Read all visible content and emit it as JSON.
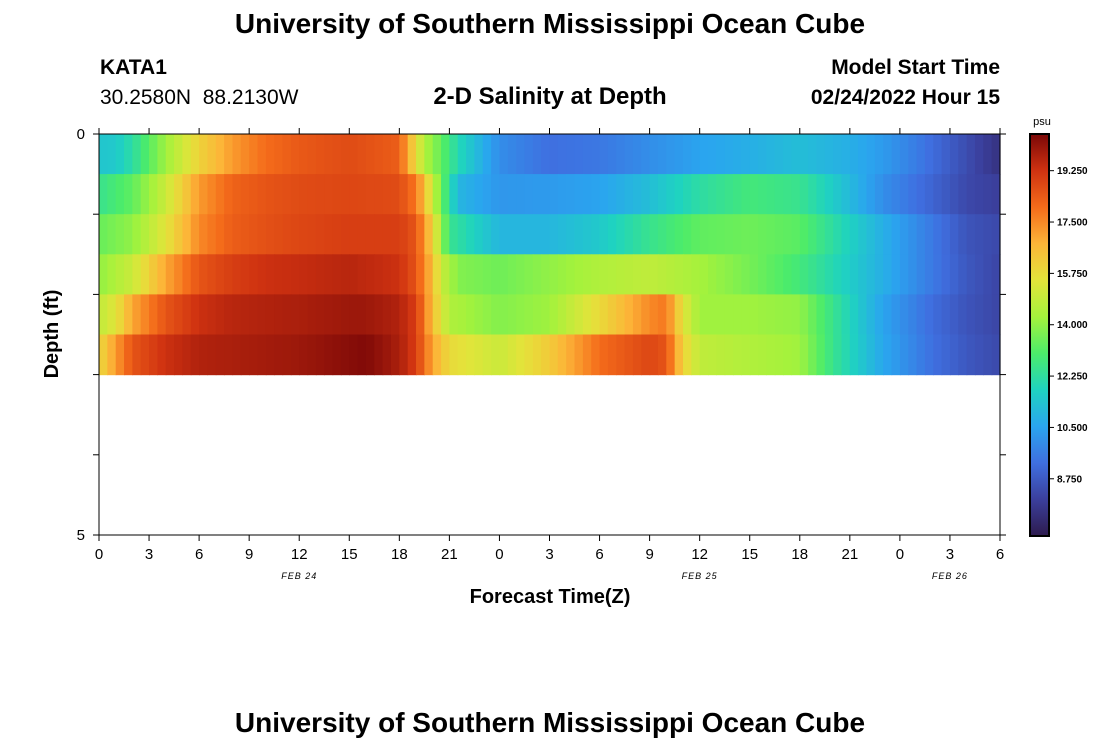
{
  "header": {
    "title": "University of Southern Mississippi Ocean Cube",
    "station_name": "KATA1",
    "station_coords": "30.2580N  88.2130W",
    "subtitle": "2-D Salinity at Depth",
    "model_start_label": "Model Start Time",
    "model_start_value": "02/24/2022 Hour 15"
  },
  "footer": {
    "title": "University of Southern Mississippi Ocean Cube"
  },
  "chart_data": {
    "type": "heatmap",
    "title": "2-D Salinity at Depth",
    "xlabel": "Forecast Time(Z)",
    "ylabel": "Depth (ft)",
    "x_tick_labels": [
      "0",
      "3",
      "6",
      "9",
      "12",
      "15",
      "18",
      "21",
      "0",
      "3",
      "6",
      "9",
      "12",
      "15",
      "18",
      "21",
      "0",
      "3",
      "6"
    ],
    "date_labels": [
      {
        "label": "FEB 24",
        "tick_index": 4
      },
      {
        "label": "FEB 25",
        "tick_index": 12
      },
      {
        "label": "FEB 26",
        "tick_index": 17
      }
    ],
    "y_tick_labels": [
      "0",
      "5"
    ],
    "ylim": [
      0,
      5
    ],
    "colorbar": {
      "unit": "psu",
      "tick_labels": [
        "19.250",
        "17.500",
        "15.750",
        "14.000",
        "12.250",
        "10.500",
        "8.750"
      ],
      "range": [
        6.8,
        20.5
      ],
      "colors": [
        "#2d1b4e",
        "#3b3f9c",
        "#3f6fe0",
        "#2aa5ef",
        "#1fd3c0",
        "#4cec6a",
        "#a5f23c",
        "#e3e43a",
        "#fcb538",
        "#f46b1a",
        "#cf3211",
        "#7a0707"
      ]
    },
    "layers": [
      {
        "depth_ft": 0.25,
        "times": [
          0,
          1,
          2,
          4,
          6,
          8,
          10,
          12,
          15,
          18,
          18.5,
          19.5,
          20.3,
          21.5,
          24,
          27,
          30,
          33,
          36,
          39,
          42,
          45,
          47,
          49,
          51.5,
          53.5,
          54
        ],
        "values": [
          11.4,
          11.5,
          12.2,
          14.2,
          16.0,
          17.2,
          18.0,
          18.4,
          18.7,
          18.3,
          17.0,
          14.5,
          13.6,
          12.0,
          10.0,
          9.3,
          9.5,
          10.0,
          10.5,
          10.8,
          11.2,
          10.8,
          10.3,
          9.6,
          8.6,
          7.8,
          7.6
        ]
      },
      {
        "depth_ft": 0.75,
        "times": [
          0,
          2,
          4,
          6,
          8,
          10,
          12,
          15,
          18,
          19,
          19.5,
          20.5,
          21.5,
          24,
          27,
          30,
          33,
          36,
          39,
          42,
          44,
          47,
          50,
          52,
          54
        ],
        "values": [
          12.5,
          13.3,
          15.0,
          17.2,
          18.2,
          18.5,
          18.7,
          18.8,
          18.7,
          17.8,
          16.5,
          13.5,
          11.0,
          10.2,
          10.3,
          10.5,
          11.2,
          12.2,
          12.8,
          12.5,
          11.6,
          10.0,
          9.0,
          8.3,
          8.0
        ]
      },
      {
        "depth_ft": 1.25,
        "times": [
          0,
          2,
          4,
          6,
          8,
          10,
          12,
          15,
          18,
          19,
          20,
          21,
          24,
          27,
          30,
          33,
          36,
          39,
          42,
          44,
          47,
          50,
          52,
          54
        ],
        "values": [
          13.4,
          14.0,
          15.5,
          17.5,
          18.3,
          18.6,
          18.8,
          19.0,
          19.0,
          18.5,
          16.0,
          12.5,
          11.0,
          11.0,
          11.5,
          12.5,
          13.3,
          13.5,
          13.2,
          12.2,
          10.8,
          9.5,
          8.6,
          8.3
        ]
      },
      {
        "depth_ft": 1.75,
        "times": [
          0,
          1,
          2,
          4,
          6,
          8,
          10,
          12,
          15,
          18,
          19,
          20,
          20.5,
          21.5,
          24,
          27,
          30,
          33,
          36,
          39,
          42,
          44,
          47,
          50,
          52,
          54
        ],
        "values": [
          14.0,
          14.5,
          15.0,
          17.0,
          18.5,
          19.0,
          19.3,
          19.4,
          19.6,
          19.3,
          18.5,
          16.5,
          15.0,
          13.8,
          13.5,
          14.0,
          14.5,
          14.8,
          14.3,
          13.6,
          12.8,
          12.0,
          10.8,
          9.5,
          8.7,
          8.2
        ]
      },
      {
        "depth_ft": 2.25,
        "times": [
          0,
          1,
          2,
          4,
          6,
          8,
          10,
          12,
          15,
          16,
          18,
          19,
          20,
          21,
          24,
          27,
          30,
          33,
          34,
          35,
          36,
          39,
          42,
          44,
          47,
          50,
          52,
          54
        ],
        "values": [
          14.8,
          15.5,
          17.0,
          18.5,
          19.3,
          19.6,
          19.7,
          19.8,
          20.0,
          20.0,
          19.7,
          19.0,
          16.5,
          14.5,
          13.8,
          14.2,
          15.8,
          17.5,
          17.8,
          15.5,
          14.2,
          14.2,
          14.0,
          12.5,
          10.5,
          9.2,
          8.6,
          8.2
        ]
      },
      {
        "depth_ft": 2.75,
        "times": [
          0,
          1,
          2,
          4,
          6,
          8,
          10,
          12,
          15,
          16,
          18,
          19,
          20,
          21,
          24,
          27,
          30,
          33,
          34,
          35,
          36,
          39,
          42,
          44,
          47,
          50,
          52,
          54
        ],
        "values": [
          15.8,
          17.2,
          18.5,
          19.3,
          19.7,
          19.8,
          19.9,
          20.0,
          20.3,
          20.4,
          19.8,
          19.0,
          17.0,
          15.8,
          15.0,
          16.2,
          18.0,
          18.8,
          18.5,
          16.0,
          14.8,
          14.5,
          14.2,
          12.5,
          10.6,
          9.3,
          8.7,
          8.3
        ]
      }
    ]
  }
}
